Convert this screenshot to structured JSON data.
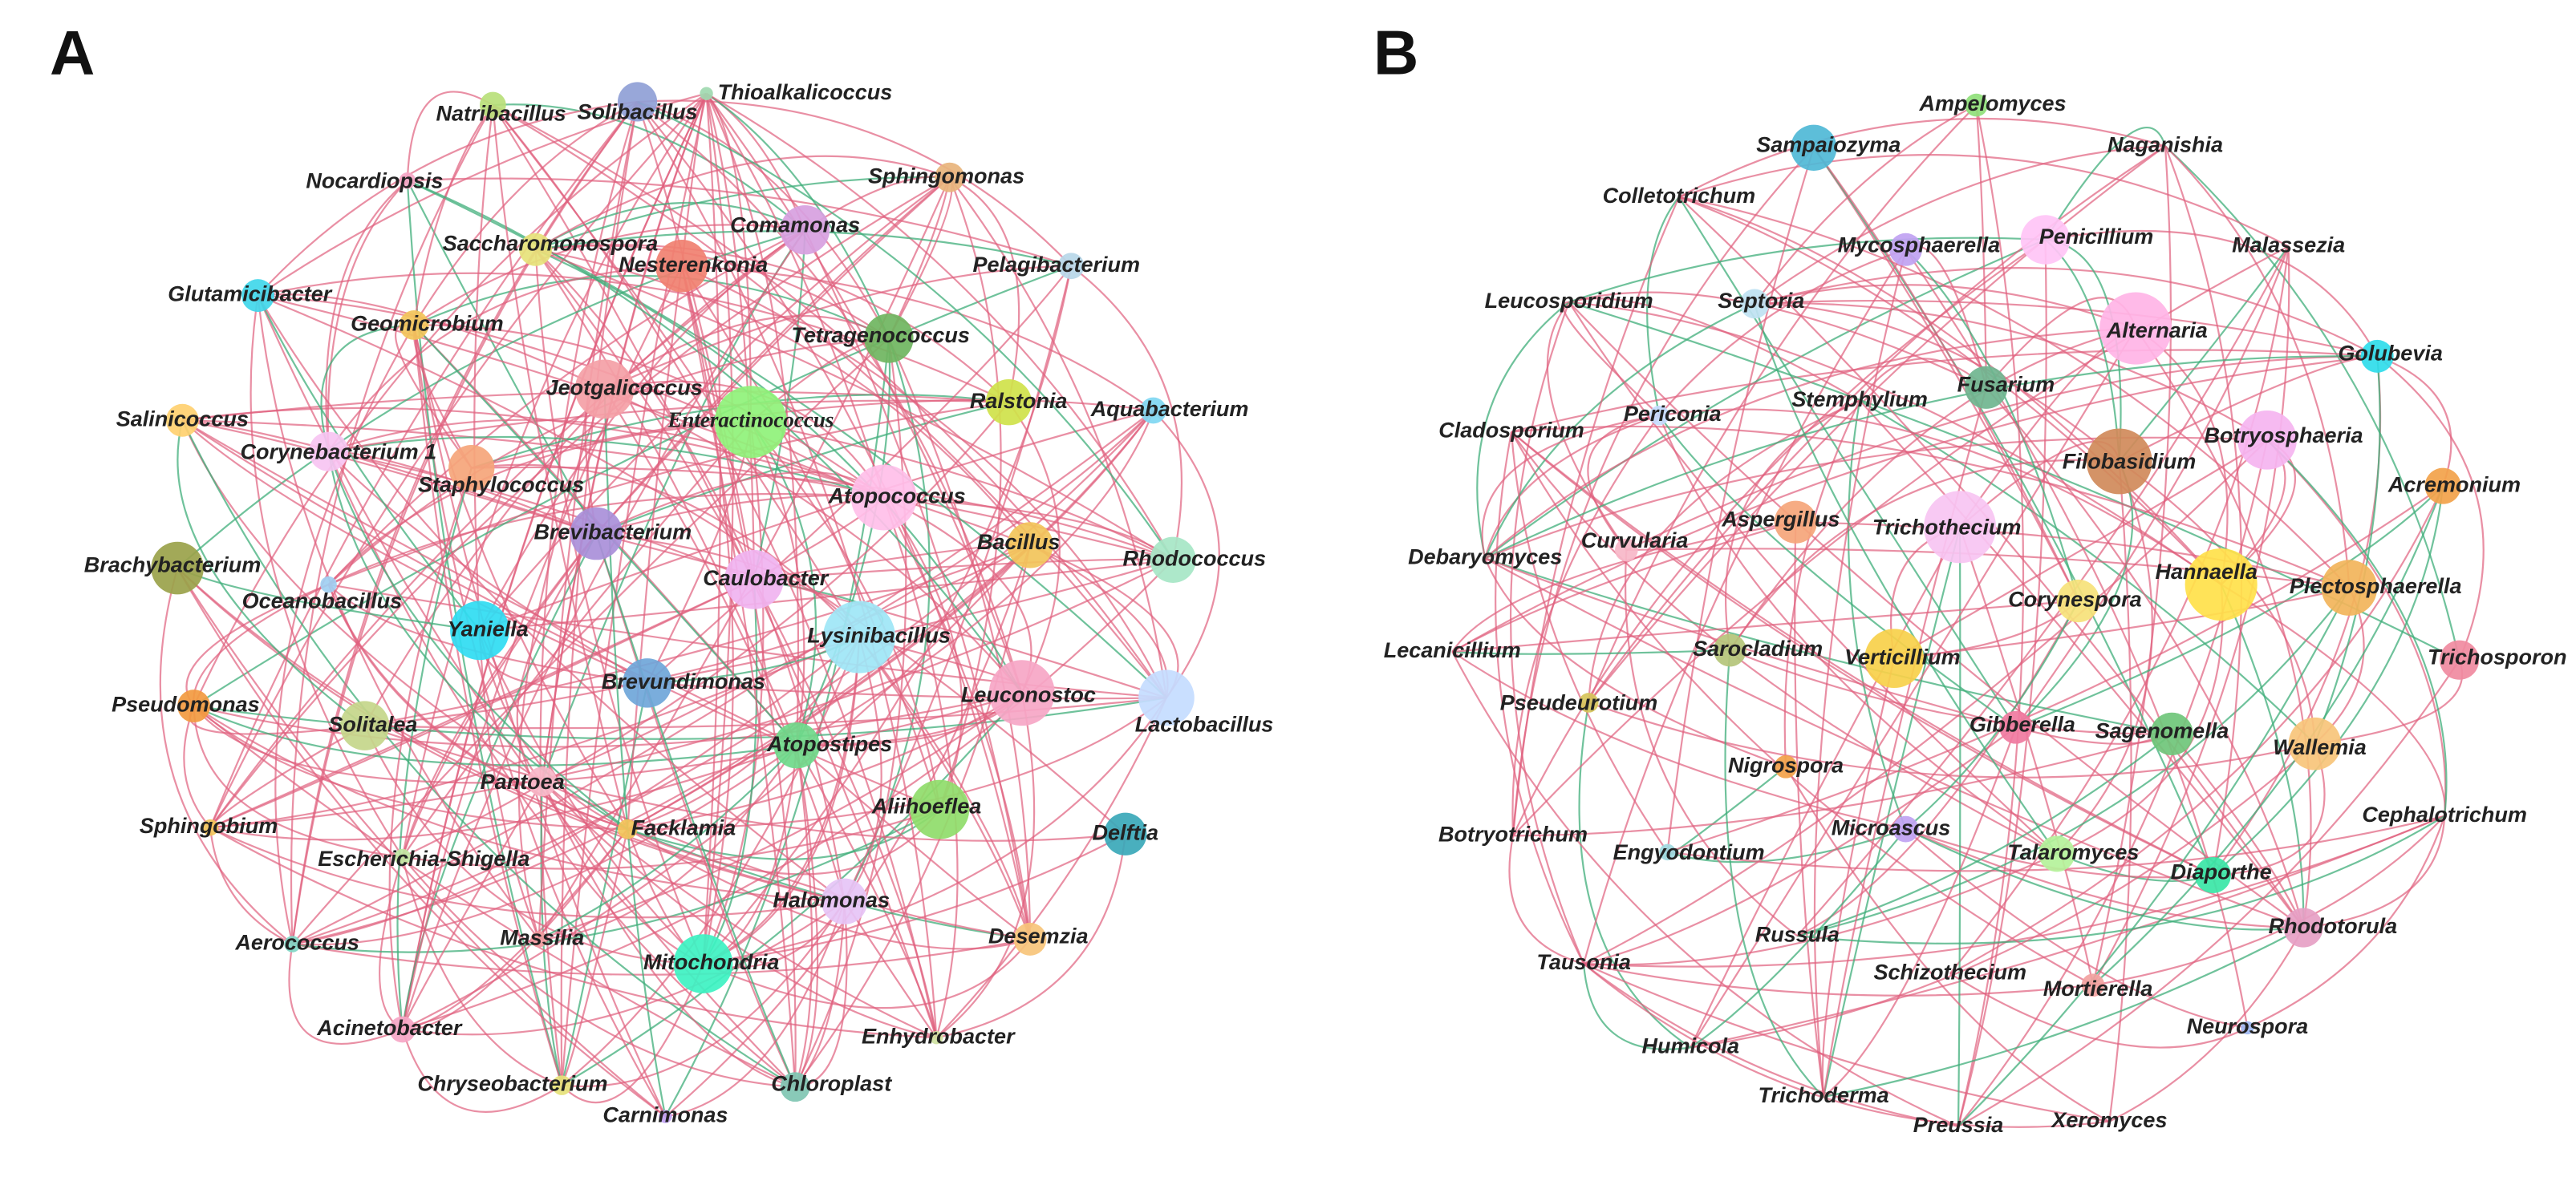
{
  "panels": [
    {
      "label": "A",
      "nodes": [
        "Natribacillus",
        "Solibacillus",
        "Thioalkalicoccus",
        "Nocardiopsis",
        "Sphingomonas",
        "Saccharomonospora",
        "Comamonas",
        "Nesterenkonia",
        "Pelagibacterium",
        "Glutamicibacter",
        "Geomicrobium",
        "Tetragenococcus",
        "Jeotgalicoccus",
        "Enteractinococcus",
        "Salinicoccus",
        "Ralstonia",
        "Aquabacterium",
        "Corynebacterium 1",
        "Staphylococcus",
        "Atopococcus",
        "Brevibacterium",
        "Bacillus",
        "Rhodococcus",
        "Brachybacterium",
        "Caulobacter",
        "Oceanobacillus",
        "Yaniella",
        "Lysinibacillus",
        "Pseudomonas",
        "Brevundimonas",
        "Leuconostoc",
        "Lactobacillus",
        "Solitalea",
        "Atopostipes",
        "Pantoea",
        "Aliihoeflea",
        "Facklamia",
        "Sphingobium",
        "Escherichia-Shigella",
        "Delftia",
        "Halomonas",
        "Aerococcus",
        "Massilia",
        "Mitochondria",
        "Desemzia",
        "Acinetobacter",
        "Enhydrobacter",
        "Chryseobacterium",
        "Chloroplast",
        "Carnimonas"
      ]
    },
    {
      "label": "B",
      "nodes": [
        "Ampelomyces",
        "Naganishia",
        "Sampaiozyma",
        "Colletotrichum",
        "Mycosphaerella",
        "Penicillium",
        "Malassezia",
        "Leucosporidium",
        "Septoria",
        "Alternaria",
        "Golubevia",
        "Fusarium",
        "Stemphylium",
        "Cladosporium",
        "Periconia",
        "Botryosphaeria",
        "Filobasidium",
        "Acremonium",
        "Aspergillus",
        "Trichothecium",
        "Curvularia",
        "Debaryomyces",
        "Hannaella",
        "Plectosphaerella",
        "Corynespora",
        "Lecanicillium",
        "Sarocladium",
        "Verticillium",
        "Trichosporon",
        "Pseudeurotium",
        "Gibberella",
        "Sagenomella",
        "Wallemia",
        "Nigrospora",
        "Cephalotrichum",
        "Microascus",
        "Botryotrichum",
        "Engyodontium",
        "Talaromyces",
        "Diaporthe",
        "Rhodotorula",
        "Russula",
        "Tausonia",
        "Schizothecium",
        "Mortierella",
        "Neurospora",
        "Humicola",
        "Trichoderma",
        "Preussia",
        "Xeromyces"
      ]
    }
  ]
}
